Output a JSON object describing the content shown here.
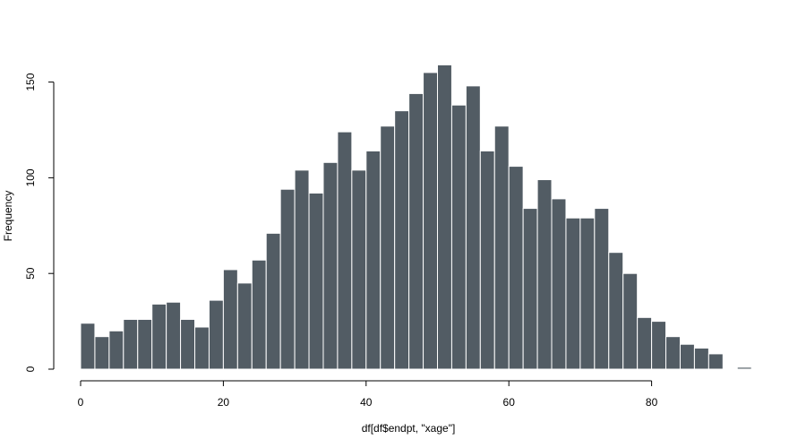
{
  "chart_data": {
    "type": "bar",
    "title": "",
    "xlabel": "df[df$endpt, \"xage\"]",
    "ylabel": "Frequency",
    "bin_width": 2,
    "x_start": 0,
    "xlim": [
      0,
      94
    ],
    "ylim": [
      0,
      159
    ],
    "x_ticks": [
      0,
      20,
      40,
      60,
      80
    ],
    "y_ticks": [
      0,
      50,
      100,
      150
    ],
    "values": [
      24,
      17,
      20,
      26,
      26,
      34,
      35,
      26,
      22,
      36,
      52,
      45,
      57,
      71,
      94,
      104,
      92,
      108,
      124,
      104,
      114,
      127,
      135,
      144,
      155,
      159,
      138,
      148,
      114,
      127,
      106,
      84,
      99,
      89,
      79,
      79,
      84,
      61,
      50,
      27,
      25,
      17,
      13,
      11,
      8,
      0,
      1
    ],
    "bar_color": "#525c64",
    "bar_border": "#ffffff",
    "grid": false,
    "legend": "none"
  }
}
